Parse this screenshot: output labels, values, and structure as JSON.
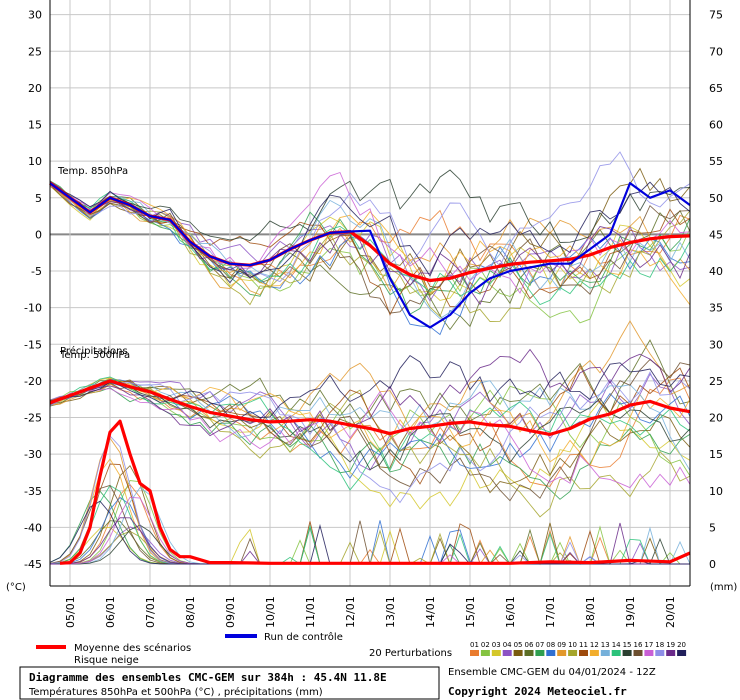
{
  "chart_data": {
    "type": "line",
    "title": "Diagramme des ensembles CMC-GEM sur 384h : 45.4N 11.8E",
    "subtitle": "Températures 850hPa et 500hPa (°C) , précipitations (mm)",
    "run_info": "Ensemble CMC-GEM du 04/01/2024 - 12Z",
    "copyright": "Copyright 2024 Meteociel.fr",
    "left_axis": {
      "unit_label": "(°C)",
      "range": [
        -48,
        32
      ],
      "ticks": [
        30,
        25,
        20,
        15,
        10,
        5,
        0,
        -5,
        -10,
        -15,
        -20,
        -25,
        -30,
        -35,
        -40,
        -45
      ]
    },
    "right_axis": {
      "unit_label": "(mm)",
      "range": [
        -3,
        77
      ],
      "ticks": [
        75,
        70,
        65,
        60,
        55,
        50,
        45,
        40,
        35,
        30,
        25,
        20,
        15,
        10,
        5,
        0
      ]
    },
    "x_ticks": [
      "05/01",
      "06/01",
      "07/01",
      "08/01",
      "09/01",
      "10/01",
      "11/01",
      "12/01",
      "13/01",
      "14/01",
      "15/01",
      "16/01",
      "17/01",
      "18/01",
      "19/01",
      "20/01"
    ],
    "x_range_days": [
      4.5,
      20.5
    ],
    "panel_labels": {
      "t850": "Temp. 850hPa",
      "t500": "Temp. 500hPa",
      "precip": "Précipitations"
    },
    "legend": {
      "mean": "Moyenne des scénarios",
      "snow": "Risque neige",
      "control": "Run de contrôle",
      "perturbations": "20 Perturbations"
    },
    "member_labels": [
      "01",
      "02",
      "03",
      "04",
      "05",
      "06",
      "07",
      "08",
      "09",
      "10",
      "11",
      "12",
      "13",
      "14",
      "15",
      "16",
      "17",
      "18",
      "19",
      "20"
    ],
    "colors": {
      "mean": "#ff0000",
      "control": "#0000dd",
      "members": [
        "#e97b2e",
        "#84c341",
        "#d4c72a",
        "#8c53c4",
        "#7a5c10",
        "#5c6e25",
        "#2f9f4f",
        "#2f6fd1",
        "#e2982b",
        "#a5a52b",
        "#9e4a0c",
        "#f2ad2c",
        "#75b0da",
        "#2bc27a",
        "#2a3f30",
        "#6c4f2f",
        "#c95fd5",
        "#8e8ee8",
        "#6a2a8a",
        "#211f5b"
      ]
    },
    "series": [
      {
        "name": "Moyenne T850",
        "unit": "°C",
        "x": [
          4.5,
          5,
          5.5,
          6,
          6.5,
          7,
          7.5,
          8,
          8.5,
          9,
          9.5,
          10,
          10.5,
          11,
          11.5,
          12,
          12.5,
          13,
          13.5,
          14,
          14.5,
          15,
          15.5,
          16,
          16.5,
          17,
          17.5,
          18,
          18.5,
          19,
          19.5,
          20,
          20.5
        ],
        "values": [
          7,
          5,
          3,
          5,
          4,
          2.5,
          2,
          -1,
          -3,
          -4,
          -4.2,
          -3.5,
          -2,
          -0.8,
          0.2,
          0.4,
          -1.5,
          -4,
          -5.5,
          -6.3,
          -6,
          -5.2,
          -4.6,
          -4.1,
          -3.8,
          -3.6,
          -3.4,
          -2.8,
          -1.8,
          -1.1,
          -0.6,
          -0.3,
          -0.2
        ]
      },
      {
        "name": "Moyenne T500",
        "unit": "°C",
        "x": [
          4.5,
          5,
          5.5,
          6,
          6.5,
          7,
          7.5,
          8,
          8.5,
          9,
          9.5,
          10,
          10.5,
          11,
          11.5,
          12,
          12.5,
          13,
          13.5,
          14,
          14.5,
          15,
          15.5,
          16,
          16.5,
          17,
          17.5,
          18,
          18.5,
          19,
          19.5,
          20,
          20.5
        ],
        "values": [
          -23,
          -22,
          -21,
          -20,
          -20.8,
          -21.5,
          -22.5,
          -23.5,
          -24.3,
          -24.8,
          -25.3,
          -25.6,
          -25.5,
          -25.3,
          -25.5,
          -26,
          -26.5,
          -27.2,
          -26.5,
          -26.2,
          -25.8,
          -25.6,
          -26,
          -26.2,
          -26.8,
          -27.3,
          -26.5,
          -25.2,
          -24.5,
          -23.3,
          -22.8,
          -23.7,
          -24.2
        ]
      },
      {
        "name": "Moyenne précipitations",
        "unit": "mm",
        "x": [
          4.75,
          5,
          5.25,
          5.5,
          5.75,
          6,
          6.25,
          6.5,
          6.75,
          7,
          7.25,
          7.5,
          7.75,
          8,
          8.5,
          9,
          10,
          12,
          14,
          16,
          17,
          18,
          19,
          20,
          20.5
        ],
        "values": [
          0.1,
          0.2,
          1.5,
          5,
          12,
          18,
          19.5,
          15,
          11,
          10,
          5,
          2,
          1,
          1,
          0.2,
          0.2,
          0.1,
          0.1,
          0.1,
          0.1,
          0.3,
          0.2,
          0.5,
          0.3,
          1.5
        ]
      },
      {
        "name": "Run de contrôle T850",
        "unit": "°C",
        "x": [
          4.5,
          5,
          5.5,
          6,
          6.5,
          7,
          7.5,
          8,
          8.5,
          9,
          9.5,
          10,
          10.5,
          11,
          11.5,
          12,
          12.5,
          13,
          13.5,
          14,
          14.5,
          15,
          15.5,
          16,
          16.5,
          17,
          17.5,
          18,
          18.5,
          19,
          19.5,
          20,
          20.5
        ],
        "values": [
          7,
          5,
          3,
          5,
          4,
          2.5,
          2,
          -1,
          -3,
          -4,
          -4.2,
          -3.5,
          -2,
          -0.8,
          0.2,
          0.4,
          0.5,
          -6,
          -11,
          -12.7,
          -11,
          -8,
          -6,
          -5,
          -4.5,
          -4,
          -4,
          -2,
          0,
          7,
          5,
          6,
          4
        ]
      }
    ]
  }
}
